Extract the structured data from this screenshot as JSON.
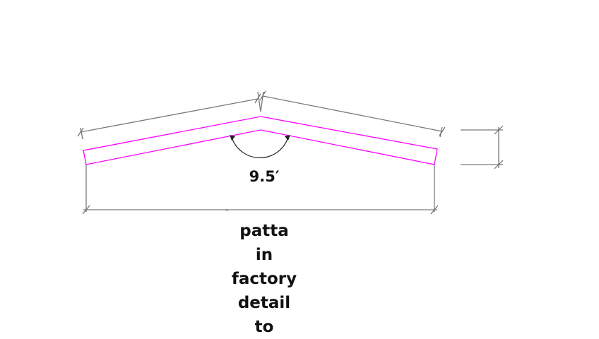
{
  "drawing": {
    "angle_label": "9.5′",
    "profile_color": "#ff00ff",
    "dimension_color": "#7a7a7a"
  },
  "caption": {
    "lines": [
      "patta",
      "in",
      "factory",
      "detail",
      "to"
    ]
  }
}
